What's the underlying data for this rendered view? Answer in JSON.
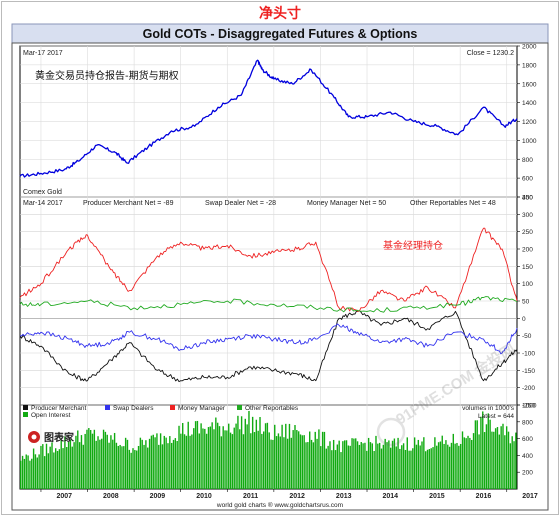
{
  "page": {
    "top_label": "净头寸",
    "title": "Gold COTs - Disaggregated Futures & Options",
    "footer": "world gold charts ® www.goldchartsrus.com",
    "logo_text": "图表家",
    "watermark": "91PME.COM 金投网"
  },
  "colors": {
    "price": "#0000dd",
    "producer_merchant": "#111111",
    "swap_dealers": "#3333ee",
    "money_manager": "#ee2222",
    "other_reportables": "#22aa22",
    "open_interest": "#11aa11",
    "title_bar": "#d8dff0",
    "annotation": "#ee2222"
  },
  "chart_data": [
    {
      "type": "line",
      "panel": "price",
      "date_label": "Mar-17  2017",
      "close_label": "Close = 1230.2",
      "annotation": "黄金交易员持仓报告-期货与期权",
      "source_label": "Comex Gold",
      "x_range": [
        2006.55,
        2017.22
      ],
      "ylim": [
        400,
        2000
      ],
      "yticks": [
        400,
        600,
        800,
        1000,
        1200,
        1400,
        1600,
        1800,
        2000
      ],
      "grid": true,
      "series": [
        {
          "name": "Comex Gold",
          "color_key": "price",
          "x": [
            2006.55,
            2007.0,
            2007.5,
            2007.8,
            2008.2,
            2008.6,
            2008.85,
            2009.3,
            2009.8,
            2010.3,
            2010.8,
            2011.3,
            2011.65,
            2011.75,
            2012.0,
            2012.4,
            2012.8,
            2013.3,
            2013.6,
            2014.0,
            2014.5,
            2015.0,
            2015.5,
            2015.95,
            2016.5,
            2016.95,
            2017.22
          ],
          "y": [
            620,
            650,
            690,
            780,
            950,
            870,
            760,
            930,
            1100,
            1150,
            1350,
            1480,
            1850,
            1750,
            1650,
            1600,
            1750,
            1450,
            1250,
            1250,
            1300,
            1200,
            1150,
            1060,
            1350,
            1150,
            1230
          ]
        }
      ]
    },
    {
      "type": "line",
      "panel": "net_positions",
      "date_label": "Mar-14  2017",
      "header_labels": [
        "Producer Merchant Net = -89",
        "Swap Dealer Net = -28",
        "Money Manager Net = 50",
        "Other Reportables Net = 48"
      ],
      "annotation": "基金经理持仓",
      "x_range": [
        2006.55,
        2017.22
      ],
      "ylim": [
        -250,
        350
      ],
      "yticks": [
        -250,
        -200,
        -150,
        -100,
        -50,
        0,
        50,
        100,
        150,
        200,
        250,
        300,
        350
      ],
      "grid": true,
      "series": [
        {
          "name": "Producer Merchant",
          "color_key": "producer_merchant",
          "x": [
            2006.55,
            2007.0,
            2007.6,
            2008.0,
            2008.5,
            2008.9,
            2009.5,
            2010.0,
            2010.5,
            2011.0,
            2011.5,
            2012.0,
            2012.5,
            2012.9,
            2013.4,
            2013.8,
            2014.3,
            2014.8,
            2015.3,
            2015.9,
            2016.5,
            2016.9,
            2017.22
          ],
          "y": [
            -50,
            -80,
            -160,
            -180,
            -120,
            -70,
            -150,
            -180,
            -170,
            -170,
            -140,
            -150,
            -160,
            -180,
            0,
            20,
            -20,
            0,
            -30,
            20,
            -180,
            -130,
            -89
          ]
        },
        {
          "name": "Swap Dealers",
          "color_key": "swap_dealers",
          "x": [
            2006.55,
            2007.0,
            2007.6,
            2008.0,
            2008.5,
            2008.9,
            2009.5,
            2010.0,
            2010.5,
            2011.0,
            2011.5,
            2012.0,
            2012.5,
            2012.9,
            2013.4,
            2013.8,
            2014.3,
            2014.8,
            2015.3,
            2015.9,
            2016.5,
            2016.9,
            2017.22
          ],
          "y": [
            -50,
            -40,
            -60,
            -80,
            -70,
            -40,
            -60,
            -90,
            -70,
            -60,
            -50,
            -60,
            -70,
            -60,
            -20,
            -40,
            -70,
            -60,
            -80,
            -40,
            -60,
            -100,
            -28
          ]
        },
        {
          "name": "Money Manager",
          "color_key": "money_manager",
          "x": [
            2006.55,
            2007.0,
            2007.6,
            2008.0,
            2008.5,
            2008.9,
            2009.5,
            2010.0,
            2010.5,
            2011.0,
            2011.5,
            2012.0,
            2012.5,
            2012.9,
            2013.4,
            2013.8,
            2014.3,
            2014.8,
            2015.3,
            2015.9,
            2016.5,
            2016.9,
            2017.22
          ],
          "y": [
            60,
            100,
            200,
            240,
            140,
            80,
            180,
            220,
            200,
            210,
            180,
            190,
            200,
            220,
            30,
            20,
            80,
            50,
            90,
            30,
            260,
            200,
            50
          ]
        },
        {
          "name": "Other Reportables",
          "color_key": "other_reportables",
          "x": [
            2006.55,
            2007.0,
            2008.0,
            2009.0,
            2010.0,
            2011.0,
            2012.0,
            2013.0,
            2014.0,
            2015.0,
            2016.0,
            2016.5,
            2017.22
          ],
          "y": [
            40,
            40,
            50,
            30,
            40,
            50,
            40,
            30,
            20,
            30,
            40,
            60,
            48
          ]
        }
      ]
    },
    {
      "type": "bar",
      "panel": "open_interest",
      "units_label": "volumes in 1000's",
      "latest_label": "Latest = 644",
      "x_range": [
        2006.55,
        2017.22
      ],
      "ylim": [
        0,
        1000
      ],
      "yticks": [
        200,
        400,
        600,
        800,
        1000
      ],
      "x_ticks": [
        "2007",
        "2008",
        "2009",
        "2010",
        "2011",
        "2012",
        "2013",
        "2014",
        "2015",
        "2016",
        "2017"
      ],
      "series": [
        {
          "name": "Open Interest",
          "color_key": "open_interest",
          "x": [
            2006.55,
            2007.0,
            2007.5,
            2008.0,
            2008.5,
            2009.0,
            2009.5,
            2010.0,
            2010.5,
            2011.0,
            2011.5,
            2012.0,
            2012.5,
            2013.0,
            2013.5,
            2014.0,
            2014.5,
            2015.0,
            2015.5,
            2016.0,
            2016.5,
            2017.0,
            2017.22
          ],
          "y": [
            350,
            450,
            550,
            650,
            600,
            500,
            600,
            700,
            720,
            750,
            800,
            650,
            700,
            600,
            500,
            550,
            520,
            550,
            530,
            580,
            800,
            650,
            644
          ]
        }
      ]
    }
  ],
  "legend": {
    "items": [
      {
        "label": "Producer Merchant",
        "color_key": "producer_merchant"
      },
      {
        "label": "Swap Dealers",
        "color_key": "swap_dealers"
      },
      {
        "label": "Money Manager",
        "color_key": "money_manager"
      },
      {
        "label": "Other Reportables",
        "color_key": "other_reportables"
      },
      {
        "label": "Open Interest",
        "color_key": "open_interest"
      }
    ]
  }
}
